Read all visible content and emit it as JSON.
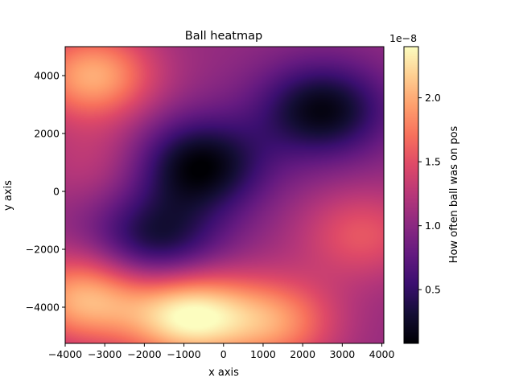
{
  "chart_data": {
    "type": "heatmap",
    "title": "Ball heatmap",
    "xlabel": "x axis",
    "ylabel": "y axis",
    "xlim": [
      -4000,
      4050
    ],
    "ylim": [
      -5250,
      5000
    ],
    "x_ticks": [
      -4000,
      -3000,
      -2000,
      -1000,
      0,
      1000,
      2000,
      3000,
      4000
    ],
    "x_tick_labels": [
      "−4000",
      "−3000",
      "−2000",
      "−1000",
      "0",
      "1000",
      "2000",
      "3000",
      "4000"
    ],
    "y_ticks": [
      -4000,
      -2000,
      0,
      2000,
      4000
    ],
    "y_tick_labels": [
      "−4000",
      "−2000",
      "0",
      "2000",
      "4000"
    ],
    "grid": false,
    "colormap": "magma",
    "colorbar": {
      "label": "How often ball was on pos",
      "scale_text": "1e−8",
      "range": [
        0.08,
        2.4
      ],
      "ticks": [
        0.5,
        1.0,
        1.5,
        2.0
      ],
      "tick_labels": [
        "0.5",
        "1.0",
        "1.5",
        "2.0"
      ]
    },
    "hotspots": [
      {
        "x": -3300,
        "y": 4000,
        "value": 2.0
      },
      {
        "x": -3500,
        "y": -3700,
        "value": 2.05
      },
      {
        "x": -900,
        "y": -4300,
        "value": 2.35
      },
      {
        "x": 1300,
        "y": -4500,
        "value": 1.85
      },
      {
        "x": 3500,
        "y": -1500,
        "value": 1.55
      },
      {
        "x": -3200,
        "y": 1000,
        "value": 1.3
      }
    ],
    "coldspots": [
      {
        "x": -600,
        "y": 900,
        "value": 0.1
      },
      {
        "x": 2500,
        "y": 2800,
        "value": 0.15
      },
      {
        "x": -1700,
        "y": -1700,
        "value": 0.3
      }
    ],
    "base_value": 1.05
  }
}
